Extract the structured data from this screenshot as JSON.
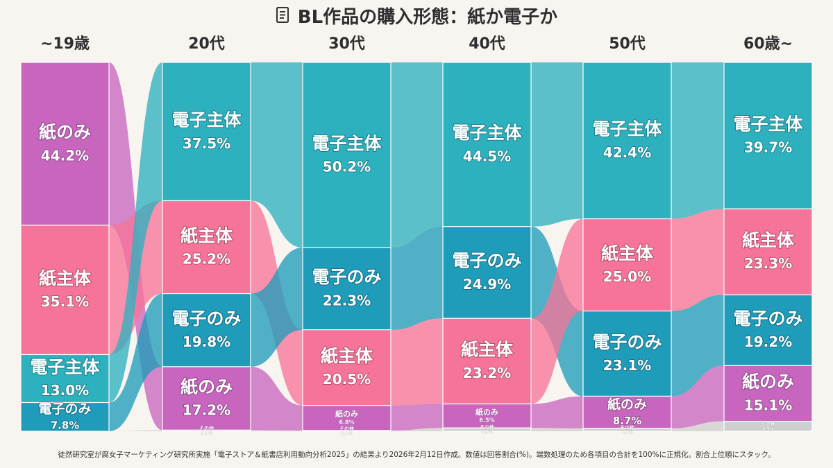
{
  "title": "BL作品の購入形態：紙か電子か",
  "footnote": "徒然研究室が腐女子マーケティング研究所実施「電子ストア＆紙書店利用動向分析2025」の結果より2026年2月12日作成。数値は回答割合(%)。端数処理のため各項目の合計を100%に正規化。割合上位順にスタック。",
  "colors": {
    "紙のみ": "#c866bf",
    "紙主体": "#f67499",
    "電子主体": "#2eb1bf",
    "電子のみ": "#1f9cba",
    "その他": "#cfcfcf"
  },
  "chart_data": {
    "type": "sankey-stacked-bar",
    "title": "BL作品の購入形態：紙か電子か",
    "categories": [
      "~19歳",
      "20代",
      "30代",
      "40代",
      "50代",
      "60歳~"
    ],
    "columns": [
      {
        "label": "~19歳",
        "segments": [
          {
            "name": "紙のみ",
            "value": 44.2,
            "display": "44.2%"
          },
          {
            "name": "紙主体",
            "value": 35.1,
            "display": "35.1%"
          },
          {
            "name": "電子主体",
            "value": 13.0,
            "display": "13.0%"
          },
          {
            "name": "電子のみ",
            "value": 7.8,
            "display": "7.8%"
          },
          {
            "name": "その他",
            "value": 0.0,
            "display": "0.0%"
          }
        ]
      },
      {
        "label": "20代",
        "segments": [
          {
            "name": "電子主体",
            "value": 37.5,
            "display": "37.5%"
          },
          {
            "name": "紙主体",
            "value": 25.2,
            "display": "25.2%"
          },
          {
            "name": "電子のみ",
            "value": 19.8,
            "display": "19.8%"
          },
          {
            "name": "紙のみ",
            "value": 17.2,
            "display": "17.2%"
          },
          {
            "name": "その他",
            "value": 0.3,
            "display": "0.3%"
          }
        ]
      },
      {
        "label": "30代",
        "segments": [
          {
            "name": "電子主体",
            "value": 50.2,
            "display": "50.2%"
          },
          {
            "name": "電子のみ",
            "value": 22.3,
            "display": "22.3%"
          },
          {
            "name": "紙主体",
            "value": 20.5,
            "display": "20.5%"
          },
          {
            "name": "紙のみ",
            "value": 6.8,
            "display": "6.8%"
          },
          {
            "name": "その他",
            "value": 0.2,
            "display": "0.2%"
          }
        ]
      },
      {
        "label": "40代",
        "segments": [
          {
            "name": "電子主体",
            "value": 44.5,
            "display": "44.5%"
          },
          {
            "name": "電子のみ",
            "value": 24.9,
            "display": "24.9%"
          },
          {
            "name": "紙主体",
            "value": 23.2,
            "display": "23.2%"
          },
          {
            "name": "紙のみ",
            "value": 6.5,
            "display": "6.5%"
          },
          {
            "name": "その他",
            "value": 0.9,
            "display": "0.9%"
          }
        ]
      },
      {
        "label": "50代",
        "segments": [
          {
            "name": "電子主体",
            "value": 42.4,
            "display": "42.4%"
          },
          {
            "name": "紙主体",
            "value": 25.0,
            "display": "25.0%"
          },
          {
            "name": "電子のみ",
            "value": 23.1,
            "display": "23.1%"
          },
          {
            "name": "紙のみ",
            "value": 8.7,
            "display": "8.7%"
          },
          {
            "name": "その他",
            "value": 0.8,
            "display": "0.8%"
          }
        ]
      },
      {
        "label": "60歳~",
        "segments": [
          {
            "name": "電子主体",
            "value": 39.7,
            "display": "39.7%"
          },
          {
            "name": "紙主体",
            "value": 23.3,
            "display": "23.3%"
          },
          {
            "name": "電子のみ",
            "value": 19.2,
            "display": "19.2%"
          },
          {
            "name": "紙のみ",
            "value": 15.1,
            "display": "15.1%"
          },
          {
            "name": "その他",
            "value": 2.7,
            "display": "2.7%"
          }
        ]
      }
    ],
    "ylim": [
      0,
      100
    ],
    "xlabel": "",
    "ylabel": ""
  }
}
